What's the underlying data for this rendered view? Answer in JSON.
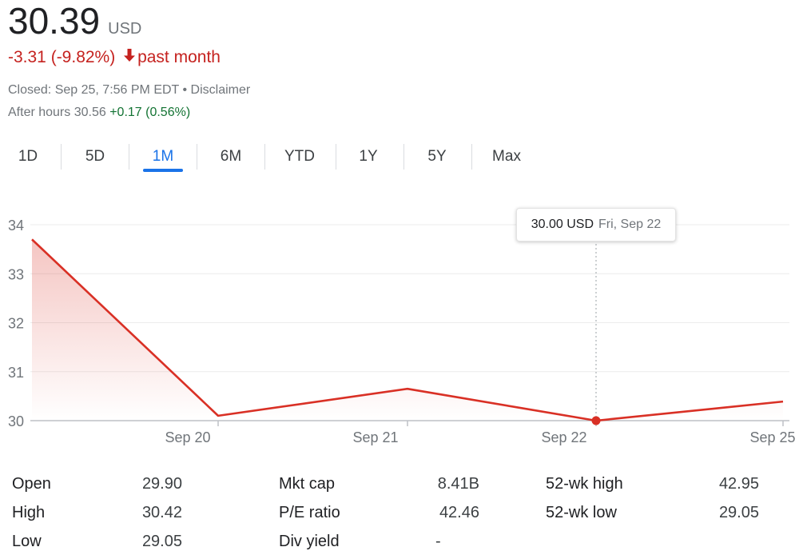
{
  "quote": {
    "price": "30.39",
    "currency": "USD",
    "change": "-3.31 (-9.82%)",
    "period": "past month",
    "closed_text": "Closed: Sep 25, 7:56 PM EDT",
    "separator": " • ",
    "disclaimer": "Disclaimer",
    "after_hours_label": "After hours 30.56",
    "after_hours_change": "+0.17 (0.56%)",
    "colors": {
      "negative": "#c5221f",
      "positive": "#137333",
      "accent": "#1a73e8"
    }
  },
  "tabs": [
    {
      "label": "1D",
      "active": false
    },
    {
      "label": "5D",
      "active": false
    },
    {
      "label": "1M",
      "active": true
    },
    {
      "label": "6M",
      "active": false
    },
    {
      "label": "YTD",
      "active": false
    },
    {
      "label": "1Y",
      "active": false
    },
    {
      "label": "5Y",
      "active": false
    },
    {
      "label": "Max",
      "active": false
    }
  ],
  "tooltip": {
    "value": "30.00 USD",
    "date": "Fri, Sep 22"
  },
  "chart_data": {
    "type": "area",
    "title": "",
    "xlabel": "",
    "ylabel": "",
    "x_ticks": [
      "Sep 20",
      "Sep 21",
      "Sep 22",
      "Sep 25"
    ],
    "y_ticks": [
      30,
      31,
      32,
      33,
      34
    ],
    "ylim": [
      30,
      34
    ],
    "grid": true,
    "line_color": "#d93025",
    "series": [
      {
        "x": [
          "Sep 19",
          "Sep 20",
          "Sep 21",
          "Sep 22",
          "Sep 25"
        ],
        "y": [
          33.7,
          30.1,
          30.65,
          30.0,
          30.39
        ]
      }
    ],
    "highlight": {
      "x": "Sep 22",
      "y": 30.0
    }
  },
  "stats": {
    "col1": [
      {
        "label": "Open",
        "value": "29.90"
      },
      {
        "label": "High",
        "value": "30.42"
      },
      {
        "label": "Low",
        "value": "29.05"
      }
    ],
    "col2": [
      {
        "label": "Mkt cap",
        "value": "8.41B"
      },
      {
        "label": "P/E ratio",
        "value": "42.46"
      },
      {
        "label": "Div yield",
        "value": "-"
      }
    ],
    "col3": [
      {
        "label": "52-wk high",
        "value": "42.95"
      },
      {
        "label": "52-wk low",
        "value": "29.05"
      }
    ]
  }
}
